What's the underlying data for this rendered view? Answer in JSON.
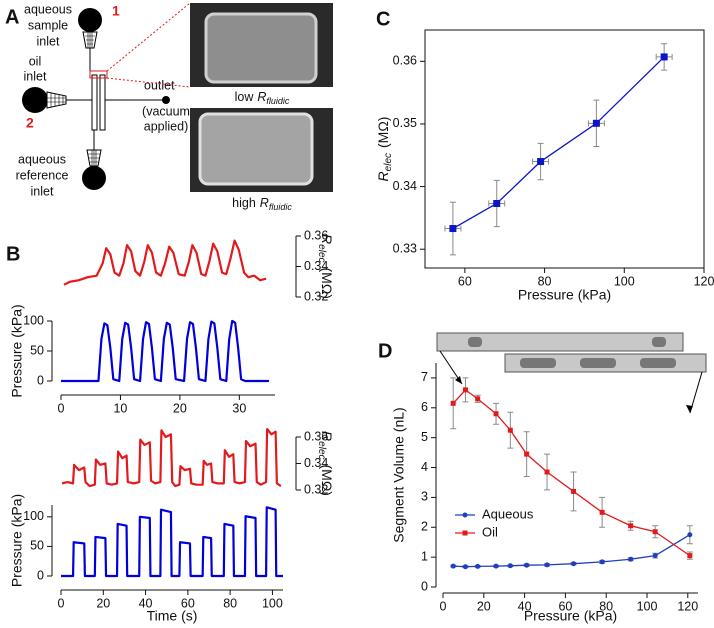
{
  "diagram": {
    "panel": "A",
    "sample_inlet": [
      "aqueous",
      "sample",
      "inlet"
    ],
    "sample_marker": "1",
    "oil_inlet": [
      "oil",
      "inlet"
    ],
    "oil_marker": "2",
    "outlet": "outlet",
    "outlet_note": [
      "(vacuum",
      "applied)"
    ],
    "reference_inlet": [
      "aqueous",
      "reference",
      "inlet"
    ],
    "images": [
      {
        "level": "low",
        "symbol": "R",
        "subscript": "fluidic"
      },
      {
        "level": "high",
        "symbol": "R",
        "subscript": "fluidic"
      }
    ]
  },
  "chart_data": [
    {
      "type": "line",
      "panel": "B",
      "xlim": [
        0,
        36
      ],
      "xticks": [
        0,
        10,
        20,
        30
      ],
      "ylabel": "Pressure (kPa)",
      "ylim": [
        0,
        100
      ],
      "yticks": [
        0,
        50,
        100
      ],
      "y2label": {
        "symbol": "R",
        "subscript": "elec",
        "unit": "(MΩ)"
      },
      "y2lim": [
        0.32,
        0.36
      ],
      "y2ticks": [
        0.32,
        0.34,
        0.36
      ],
      "series": [
        {
          "color": "#e31a1c",
          "axis": "y2",
          "x": [
            0.5,
            1.5,
            3,
            4.5,
            6,
            7,
            7.6,
            8.3,
            9,
            9.8,
            10.5,
            11.1,
            11.8,
            12.5,
            13.3,
            14,
            14.6,
            15.3,
            16,
            16.8,
            17.5,
            18.2,
            18.9,
            19.8,
            20.8,
            21.5,
            22.1,
            22.8,
            23.6,
            24.3,
            25,
            25.6,
            26.3,
            27.1,
            27.8,
            28.5,
            29.2,
            29.9,
            30.8,
            31.5,
            32.5,
            33.5,
            34.5
          ],
          "values": [
            0.328,
            0.33,
            0.331,
            0.333,
            0.334,
            0.342,
            0.352,
            0.348,
            0.336,
            0.334,
            0.342,
            0.354,
            0.35,
            0.337,
            0.334,
            0.343,
            0.354,
            0.349,
            0.336,
            0.334,
            0.342,
            0.353,
            0.349,
            0.335,
            0.334,
            0.343,
            0.354,
            0.349,
            0.335,
            0.334,
            0.344,
            0.355,
            0.35,
            0.336,
            0.335,
            0.345,
            0.357,
            0.351,
            0.336,
            0.333,
            0.334,
            0.331,
            0.332
          ]
        },
        {
          "color": "#0000dd",
          "x": [
            0,
            6.3,
            6.8,
            7.3,
            7.8,
            8.3,
            8.8,
            9.8,
            10.3,
            10.8,
            11.3,
            11.8,
            12.3,
            13.3,
            13.8,
            14.3,
            14.8,
            15.3,
            15.8,
            16.8,
            17.3,
            17.8,
            18.3,
            18.8,
            19.3,
            20.7,
            21.2,
            21.7,
            22.2,
            22.7,
            23.2,
            24.3,
            24.8,
            25.3,
            25.8,
            26.3,
            26.8,
            27.8,
            28.3,
            28.8,
            29.3,
            29.8,
            30.3,
            31,
            35
          ],
          "values": [
            0,
            0,
            70,
            96,
            93,
            55,
            3,
            0,
            70,
            97,
            94,
            55,
            3,
            0,
            70,
            98,
            95,
            55,
            3,
            0,
            70,
            97,
            94,
            55,
            3,
            0,
            70,
            98,
            95,
            55,
            3,
            0,
            70,
            99,
            96,
            55,
            3,
            0,
            70,
            100,
            97,
            55,
            3,
            0,
            0
          ]
        }
      ]
    },
    {
      "type": "line",
      "xlim": [
        0,
        105
      ],
      "xticks": [
        0,
        20,
        40,
        60,
        80,
        100
      ],
      "xlabel": "Time (s)",
      "ylabel": "Pressure (kPa)",
      "ylim": [
        0,
        120
      ],
      "yticks": [
        0,
        50,
        100
      ],
      "y2label": {
        "symbol": "R",
        "subscript": "elec",
        "unit": "(MΩ)"
      },
      "y2lim": [
        0.32,
        0.36
      ],
      "y2ticks": [
        0.32,
        0.34,
        0.36
      ],
      "series": [
        {
          "color": "#e31a1c",
          "axis": "y2",
          "x": [
            0.5,
            3,
            5.7,
            6.2,
            8.5,
            11,
            11.6,
            13.5,
            16,
            16.5,
            18.5,
            21,
            21.6,
            24,
            26.5,
            27,
            29,
            31,
            31.6,
            34.5,
            37,
            37.5,
            39.5,
            42,
            42.6,
            44.5,
            47,
            47.5,
            49.5,
            52,
            52.6,
            54,
            56,
            56.5,
            58.5,
            61,
            61.6,
            64,
            67,
            67.5,
            69,
            71,
            71.6,
            74,
            77,
            77.5,
            79.5,
            81.5,
            82.1,
            84.5,
            87,
            87.5,
            89.5,
            92,
            92.6,
            94.5,
            97,
            97.5,
            99.5,
            101.5,
            102.1,
            104
          ],
          "values": [
            0.325,
            0.326,
            0.325,
            0.339,
            0.335,
            0.337,
            0.326,
            0.323,
            0.324,
            0.343,
            0.339,
            0.34,
            0.325,
            0.324,
            0.325,
            0.349,
            0.344,
            0.346,
            0.326,
            0.325,
            0.326,
            0.358,
            0.354,
            0.356,
            0.327,
            0.325,
            0.326,
            0.365,
            0.36,
            0.362,
            0.326,
            0.323,
            0.324,
            0.338,
            0.335,
            0.336,
            0.325,
            0.324,
            0.324,
            0.342,
            0.339,
            0.34,
            0.326,
            0.325,
            0.325,
            0.35,
            0.345,
            0.347,
            0.326,
            0.325,
            0.326,
            0.357,
            0.353,
            0.355,
            0.326,
            0.324,
            0.326,
            0.366,
            0.362,
            0.364,
            0.325,
            0.323
          ]
        },
        {
          "color": "#0000dd",
          "x": [
            0,
            5.7,
            6,
            11,
            11.3,
            16,
            16.3,
            21,
            21.3,
            26.5,
            26.8,
            31,
            31.3,
            37,
            37.3,
            42,
            42.3,
            47,
            47.3,
            52,
            52.3,
            56,
            56.3,
            61,
            61.3,
            67,
            67.3,
            71,
            71.3,
            77,
            77.3,
            81.5,
            81.8,
            87,
            87.3,
            92,
            92.3,
            97,
            97.3,
            101.5,
            101.8,
            105
          ],
          "values": [
            0,
            0,
            57,
            55,
            0,
            0,
            66,
            64,
            0,
            0,
            88,
            85,
            0,
            0,
            100,
            98,
            0,
            0,
            112,
            108,
            0,
            0,
            57,
            55,
            0,
            0,
            66,
            64,
            0,
            0,
            88,
            85,
            0,
            0,
            101,
            98,
            0,
            0,
            116,
            112,
            0,
            0
          ]
        }
      ]
    },
    {
      "type": "scatter",
      "panel": "C",
      "line": true,
      "xlabel": "Pressure (kPa)",
      "ylabel": {
        "symbol": "R",
        "subscript": "elec",
        "unit": "(MΩ)"
      },
      "xlim": [
        50,
        120
      ],
      "xticks": [
        60,
        80,
        100,
        120
      ],
      "ylim": [
        0.327,
        0.365
      ],
      "yticks": [
        0.33,
        0.34,
        0.35,
        0.36
      ],
      "x": [
        57,
        68,
        79,
        93,
        110
      ],
      "xerr": [
        2,
        2,
        2,
        2,
        2
      ],
      "series": [
        {
          "color": "#0a14c8",
          "marker": "square",
          "values": [
            0.3333,
            0.3373,
            0.344,
            0.3501,
            0.3607
          ],
          "errors": [
            0.0042,
            0.0037,
            0.0029,
            0.0037,
            0.0021
          ]
        }
      ]
    },
    {
      "type": "line",
      "panel": "D",
      "xlabel": "Pressure (kPa)",
      "ylabel": "Segment Volume (nL)",
      "xlim": [
        0,
        125
      ],
      "xticks": [
        0,
        20,
        40,
        60,
        80,
        100,
        120
      ],
      "ylim": [
        0,
        7.5
      ],
      "yticks": [
        0,
        1,
        2,
        3,
        4,
        5,
        6,
        7
      ],
      "legend": "lower left",
      "x": [
        5,
        11,
        17,
        26,
        33,
        41,
        51,
        64,
        78,
        92,
        104,
        121
      ],
      "series": [
        {
          "name": "Aqueous",
          "color": "#1f3fbf",
          "marker": "circle",
          "values": [
            0.7,
            0.68,
            0.69,
            0.7,
            0.71,
            0.73,
            0.74,
            0.78,
            0.84,
            0.93,
            1.05,
            1.75
          ],
          "errors": [
            0.03,
            0.03,
            0.03,
            0.03,
            0.03,
            0.04,
            0.04,
            0.04,
            0.05,
            0.05,
            0.08,
            0.3
          ]
        },
        {
          "name": "Oil",
          "color": "#e31a1c",
          "marker": "square",
          "values": [
            6.15,
            6.6,
            6.3,
            5.8,
            5.25,
            4.45,
            3.85,
            3.2,
            2.5,
            2.05,
            1.85,
            1.05
          ],
          "errors": [
            0.85,
            0.4,
            0.12,
            0.35,
            0.6,
            0.75,
            0.6,
            0.65,
            0.5,
            0.15,
            0.2,
            0.12
          ]
        }
      ]
    }
  ]
}
